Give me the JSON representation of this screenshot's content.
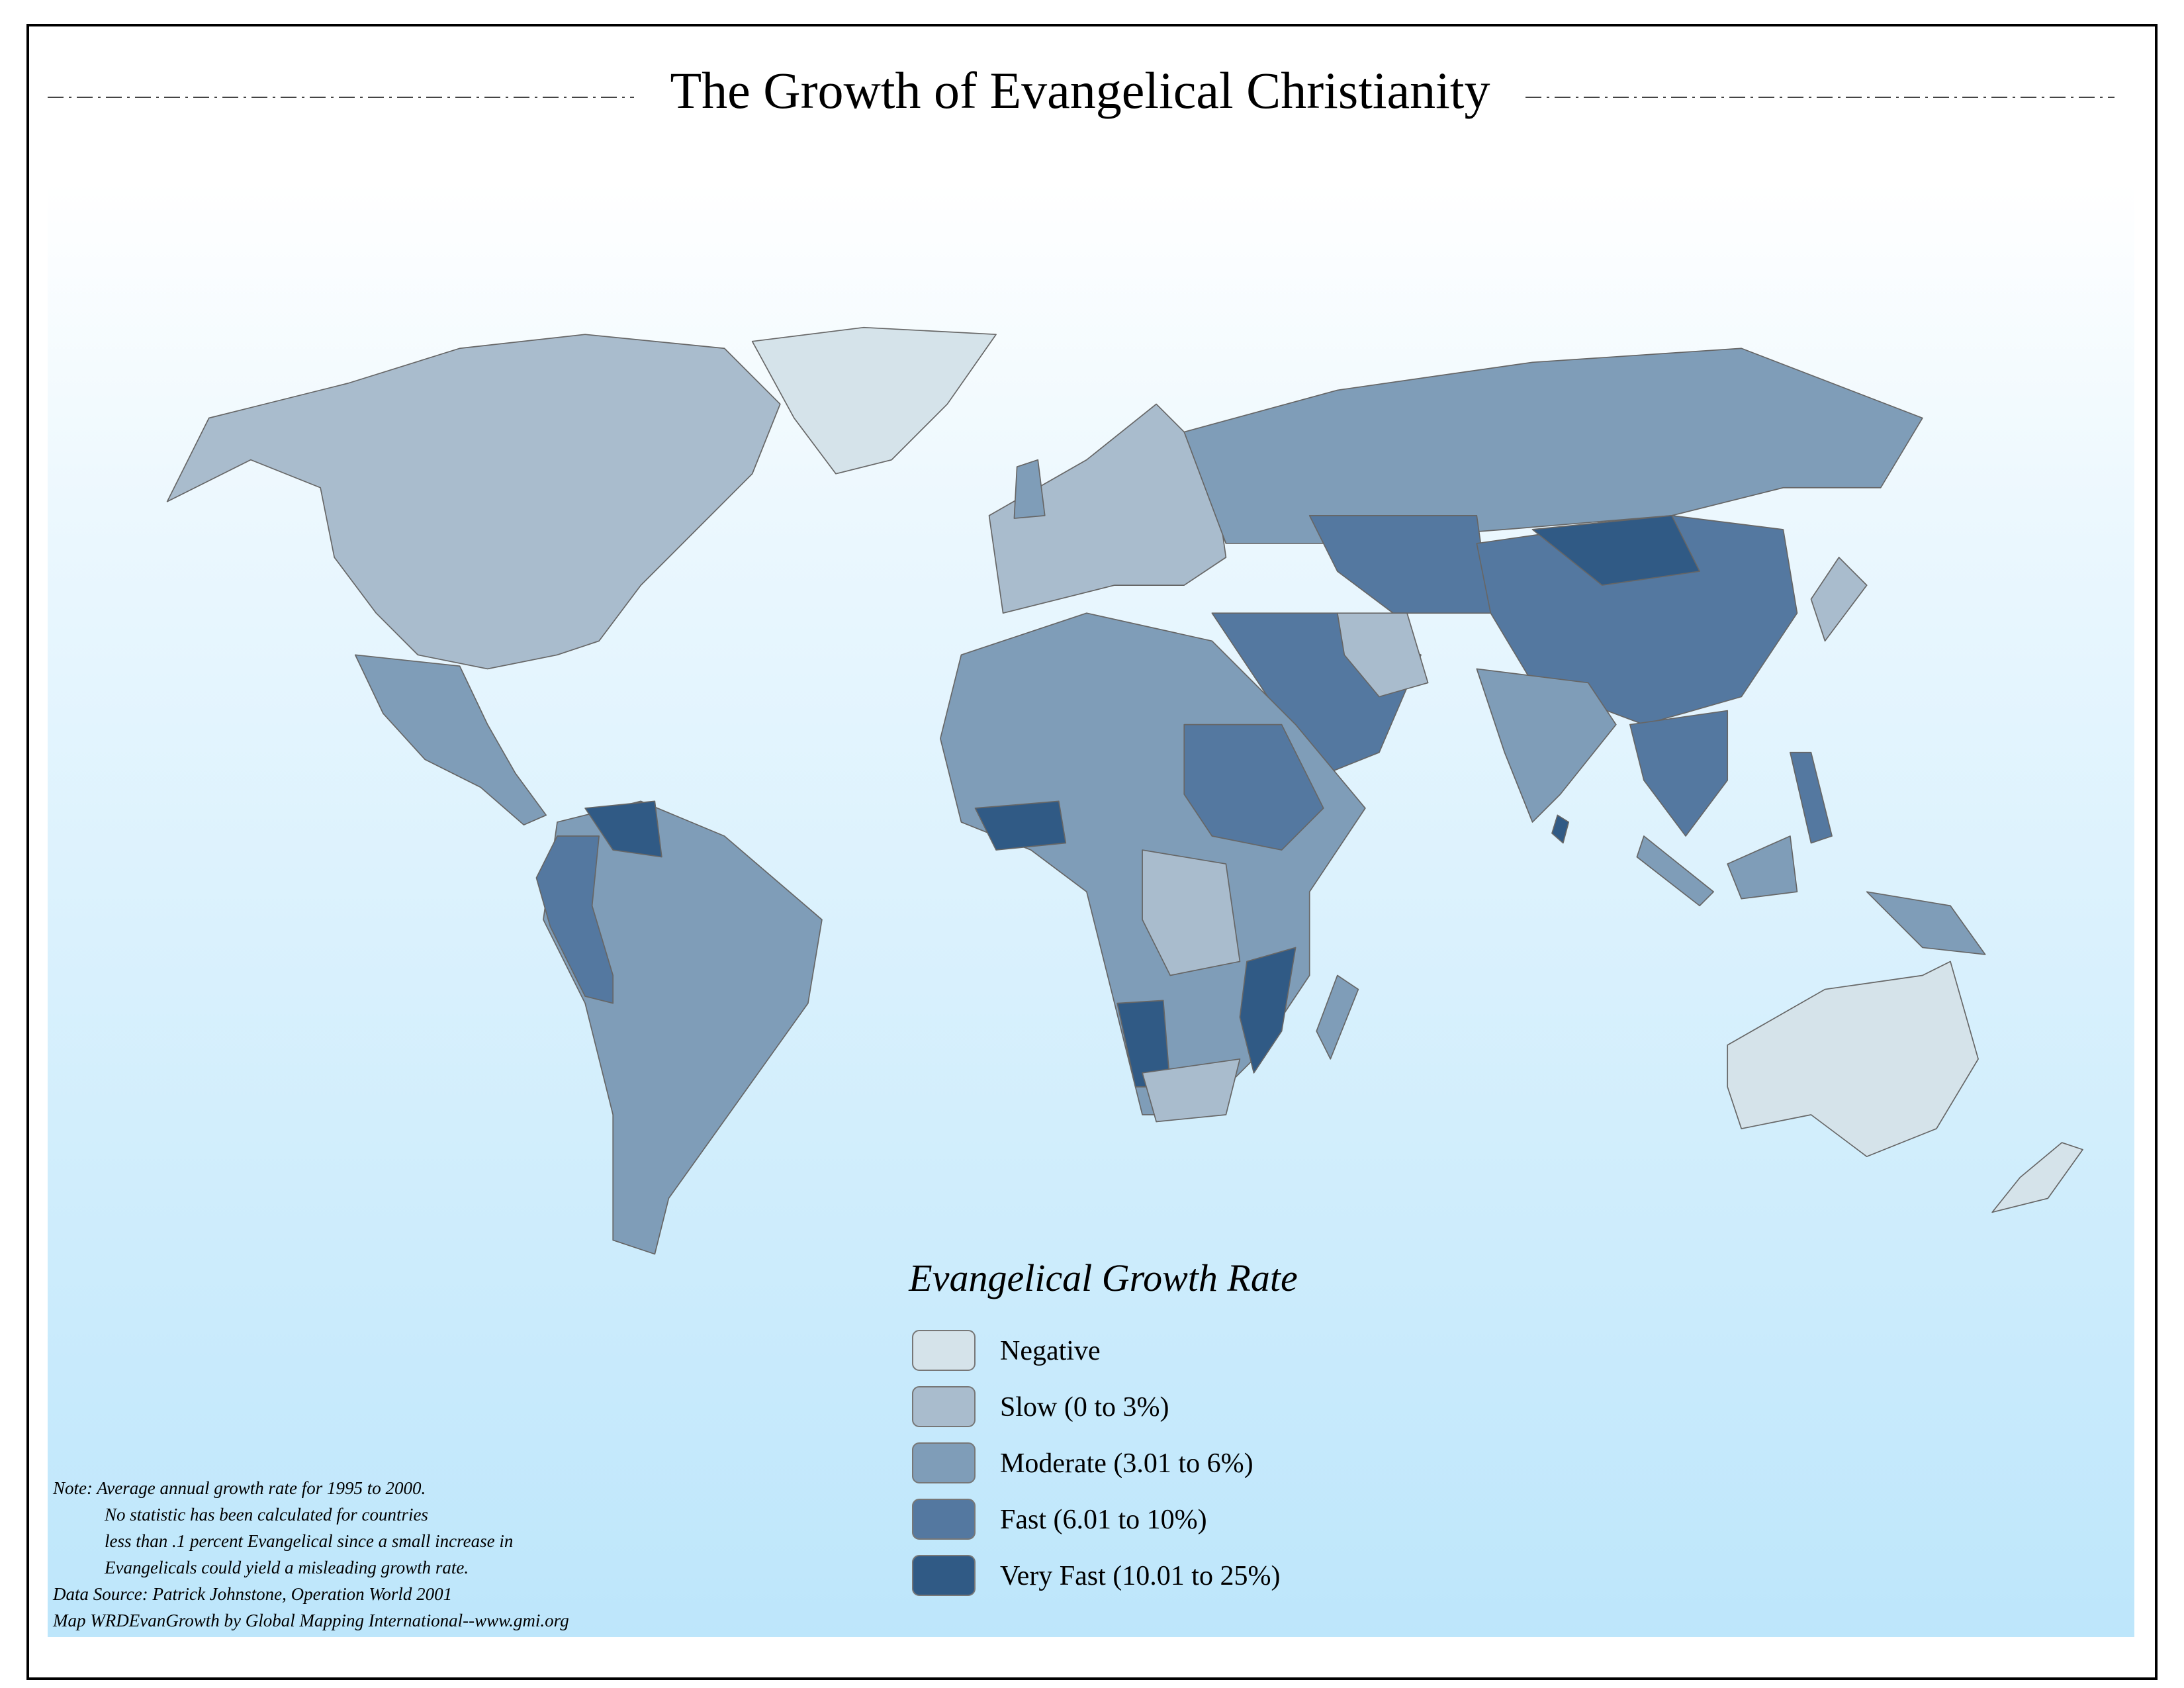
{
  "header": {
    "title": "The Growth of Evangelical Christianity"
  },
  "legend": {
    "title": "Evangelical Growth Rate",
    "items": [
      {
        "label": "Negative",
        "color": "#d5e3ea"
      },
      {
        "label": "Slow (0 to 3%)",
        "color": "#a9bccd"
      },
      {
        "label": "Moderate (3.01 to 6%)",
        "color": "#7f9db8"
      },
      {
        "label": "Fast (6.01 to 10%)",
        "color": "#5478a0"
      },
      {
        "label": "Very Fast (10.01 to 25%)",
        "color": "#305a85"
      }
    ]
  },
  "notes": [
    "Note: Average annual growth rate for 1995 to 2000.",
    "No statistic has been calculated for countries",
    "less than .1 percent Evangelical since a small increase in",
    "Evangelicals could yield a misleading growth rate.",
    "Data Source:  Patrick Johnstone, Operation World 2001",
    "Map WRDEvanGrowth by Global Mapping International--www.gmi.org"
  ]
}
